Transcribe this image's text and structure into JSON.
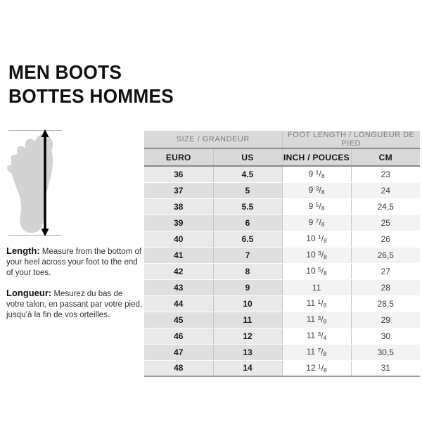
{
  "page": {
    "title_line1": "MEN BOOTS",
    "title_line2": "BOTTES HOMMES"
  },
  "diagram": {
    "icon": "foot-silhouette-icon",
    "arrow": "measure-length-arrow"
  },
  "instructions": {
    "length_label": "Length:",
    "length_text": "Measure from the bottom of your heel across your foot to the end of your toes.",
    "longueur_label": "Longueur:",
    "longueur_text": "Mesurez du bas de votre talon, en passant par votre pied, jusqu’à la fin de vos orteilles."
  },
  "table": {
    "group_headers": [
      {
        "label": "SIZE / GRANDEUR"
      },
      {
        "label": "FOOT LENGTH / LONGUEUR DE PIED"
      }
    ],
    "columns": [
      "EURO",
      "US",
      "INCH / POUCES",
      "CM"
    ],
    "rows": [
      {
        "euro": "36",
        "us": "4.5",
        "inch": "9 1/8",
        "cm": "23"
      },
      {
        "euro": "37",
        "us": "5",
        "inch": "9 3/8",
        "cm": "24"
      },
      {
        "euro": "38",
        "us": "5.5",
        "inch": "9 5/8",
        "cm": "24,5"
      },
      {
        "euro": "39",
        "us": "6",
        "inch": "9 7/8",
        "cm": "25"
      },
      {
        "euro": "40",
        "us": "6.5",
        "inch": "10 1/8",
        "cm": "26"
      },
      {
        "euro": "41",
        "us": "7",
        "inch": "10 3/8",
        "cm": "26,5"
      },
      {
        "euro": "42",
        "us": "8",
        "inch": "10 5/8",
        "cm": "27"
      },
      {
        "euro": "43",
        "us": "9",
        "inch": "11",
        "cm": "28"
      },
      {
        "euro": "44",
        "us": "10",
        "inch": "11 1/8",
        "cm": "28,5"
      },
      {
        "euro": "45",
        "us": "11",
        "inch": "11 3/8",
        "cm": "29"
      },
      {
        "euro": "46",
        "us": "12",
        "inch": "11 3/4",
        "cm": "30"
      },
      {
        "euro": "47",
        "us": "13",
        "inch": "11 7/8",
        "cm": "30,5"
      },
      {
        "euro": "48",
        "us": "14",
        "inch": "12 1/8",
        "cm": "31"
      }
    ]
  },
  "colors": {
    "header_bg": "#d9d9d9",
    "header_muted_text": "#7d7d7d",
    "size_col_bg_odd": "#e9e9e9",
    "size_col_bg_even": "#dfdfdf",
    "length_col_bg_odd": "#ffffff",
    "length_col_bg_even": "#f3f3f3",
    "rule_dark": "#8a8a8a",
    "text_dark": "#1a1a1a",
    "foot_fill": "#d3d3d3",
    "guide_line": "#b3b3b3"
  }
}
